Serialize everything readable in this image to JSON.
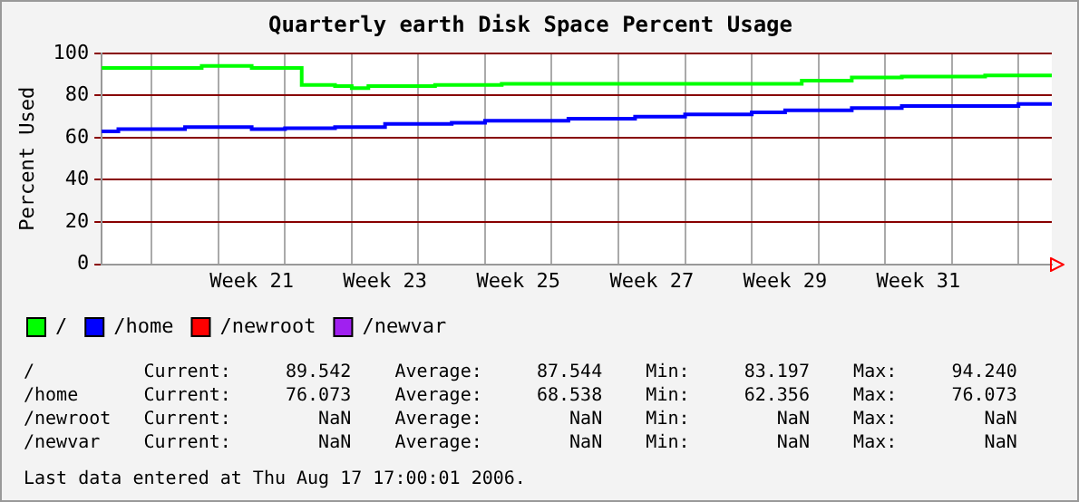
{
  "chart_data": {
    "type": "step",
    "title": "Quarterly earth Disk Space Percent Usage",
    "ylabel": "Percent Used",
    "categories": [
      null,
      null,
      null,
      null,
      null,
      null,
      null,
      null,
      null,
      "Week 21",
      null,
      null,
      null,
      null,
      null,
      null,
      null,
      "Week 23",
      null,
      null,
      null,
      null,
      null,
      null,
      null,
      "Week 25",
      null,
      null,
      null,
      null,
      null,
      null,
      null,
      "Week 27",
      null,
      null,
      null,
      null,
      null,
      null,
      null,
      "Week 29",
      null,
      null,
      null,
      null,
      null,
      null,
      null,
      "Week 31",
      null,
      null,
      null,
      null,
      null,
      null,
      null,
      null
    ],
    "series": [
      {
        "name": "/",
        "color": "#00ff00",
        "values": [
          93,
          93,
          93,
          93,
          93,
          93,
          93,
          94,
          94,
          94,
          93,
          93,
          93,
          85,
          85,
          84.5,
          83.5,
          84.5,
          84.5,
          84.5,
          84.5,
          85,
          85,
          85,
          85,
          85.5,
          85.5,
          85.5,
          85.5,
          85.5,
          85.5,
          85.5,
          85.5,
          85.5,
          85.5,
          85.5,
          85.5,
          85.5,
          85.5,
          85.5,
          85.5,
          85.5,
          85.5,
          87,
          87,
          87,
          88.5,
          88.5,
          88.5,
          89,
          89,
          89,
          89,
          89,
          89.5,
          89.5,
          89.5,
          89.5
        ]
      },
      {
        "name": "/home",
        "color": "#0000ff",
        "values": [
          63,
          63,
          64,
          64,
          64,
          64,
          65,
          65,
          65,
          65,
          64,
          64,
          64.5,
          64.5,
          64.5,
          65,
          65,
          65,
          66.5,
          66.5,
          66.5,
          66.5,
          67,
          67,
          68,
          68,
          68,
          68,
          68,
          69,
          69,
          69,
          69,
          70,
          70,
          70,
          71,
          71,
          71,
          71,
          72,
          72,
          73,
          73,
          73,
          73,
          74,
          74,
          74,
          75,
          75,
          75,
          75,
          75,
          75,
          75,
          76,
          76
        ]
      },
      {
        "name": "/newroot",
        "color": "#ff0000",
        "values": [
          null,
          null,
          null,
          null,
          null,
          null,
          null,
          null,
          null,
          null,
          null,
          null,
          null,
          null,
          null,
          null,
          null,
          null,
          null,
          null,
          null,
          null,
          null,
          null,
          null,
          null,
          null,
          null,
          null,
          null,
          null,
          null,
          null,
          null,
          null,
          null,
          null,
          null,
          null,
          null,
          null,
          null,
          null,
          null,
          null,
          null,
          null,
          null,
          null,
          null,
          null,
          null,
          null,
          null,
          null,
          null,
          null,
          null
        ]
      },
      {
        "name": "/newvar",
        "color": "#a020f0",
        "values": [
          null,
          null,
          null,
          null,
          null,
          null,
          null,
          null,
          null,
          null,
          null,
          null,
          null,
          null,
          null,
          null,
          null,
          null,
          null,
          null,
          null,
          null,
          null,
          null,
          null,
          null,
          null,
          null,
          null,
          null,
          null,
          null,
          null,
          null,
          null,
          null,
          null,
          null,
          null,
          null,
          null,
          null,
          null,
          null,
          null,
          null,
          null,
          null,
          null,
          null,
          null,
          null,
          null,
          null,
          null,
          null,
          null,
          null
        ]
      }
    ],
    "ylim": [
      0,
      100
    ],
    "yticks": [
      0,
      20,
      40,
      60,
      80,
      100
    ],
    "grid": true,
    "legend": "bottom",
    "annotations": [
      "/          Current:     89.542    Average:     87.544    Min:     83.197    Max:     94.240",
      "/home      Current:     76.073    Average:     68.538    Min:     62.356    Max:     76.073",
      "/newroot   Current:        NaN    Average:        NaN    Min:        NaN    Max:        NaN",
      "/newvar    Current:        NaN    Average:        NaN    Min:        NaN    Max:        NaN",
      "Last data entered at Thu Aug 17 17:00:01 2006."
    ]
  }
}
